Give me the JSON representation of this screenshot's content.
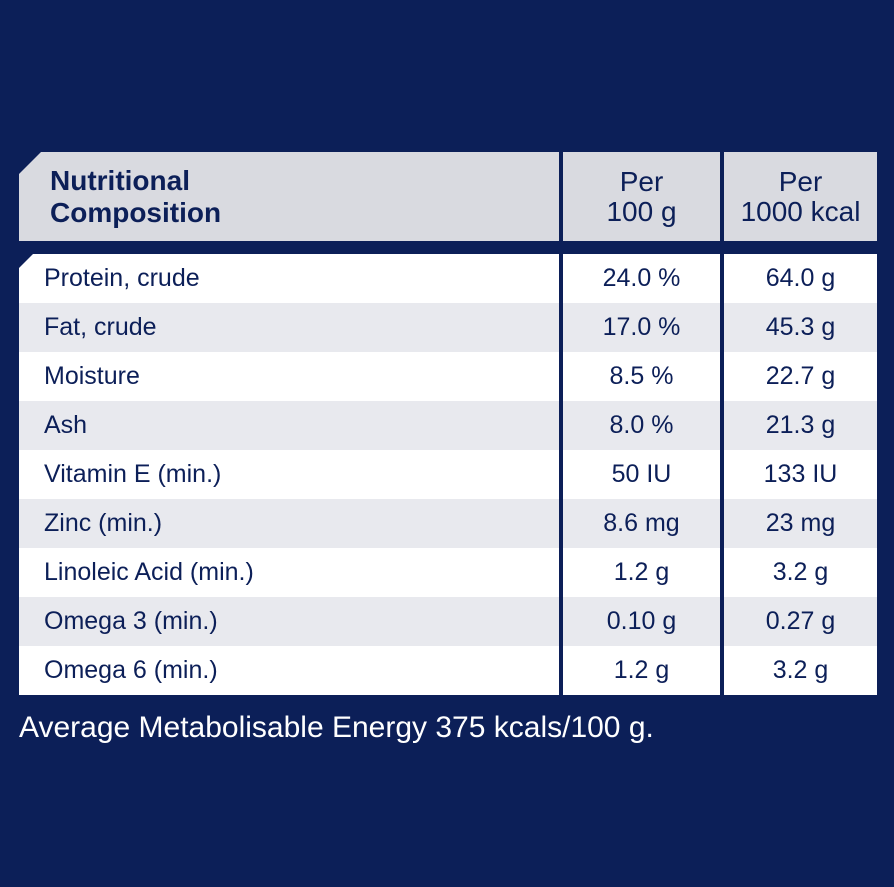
{
  "table": {
    "header": {
      "label_line1": "Nutritional",
      "label_line2": "Composition",
      "col1_line1": "Per",
      "col1_line2": "100 g",
      "col2_line1": "Per",
      "col2_line2": "1000 kcal"
    },
    "rows": [
      {
        "name": "Protein, crude",
        "per_100g": "24.0 %",
        "per_1000kcal": "64.0 g"
      },
      {
        "name": "Fat, crude",
        "per_100g": "17.0 %",
        "per_1000kcal": "45.3 g"
      },
      {
        "name": "Moisture",
        "per_100g": "8.5 %",
        "per_1000kcal": "22.7 g"
      },
      {
        "name": "Ash",
        "per_100g": "8.0 %",
        "per_1000kcal": "21.3 g"
      },
      {
        "name": "Vitamin E (min.)",
        "per_100g": "50 IU",
        "per_1000kcal": "133 IU"
      },
      {
        "name": "Zinc (min.)",
        "per_100g": "8.6 mg",
        "per_1000kcal": "23 mg"
      },
      {
        "name": "Linoleic Acid (min.)",
        "per_100g": "1.2 g",
        "per_1000kcal": "3.2 g"
      },
      {
        "name": "Omega 3 (min.)",
        "per_100g": "0.10 g",
        "per_1000kcal": "0.27 g"
      },
      {
        "name": "Omega 6 (min.)",
        "per_100g": "1.2 g",
        "per_1000kcal": "3.2 g"
      }
    ]
  },
  "footer": {
    "note": "Average Metabolisable Energy 375 kcals/100 g."
  },
  "colors": {
    "background": "#0c1f58",
    "header_bg": "#d9dae0",
    "row_light": "#ffffff",
    "row_shade": "#e8e9ee",
    "text": "#0c1f58"
  }
}
